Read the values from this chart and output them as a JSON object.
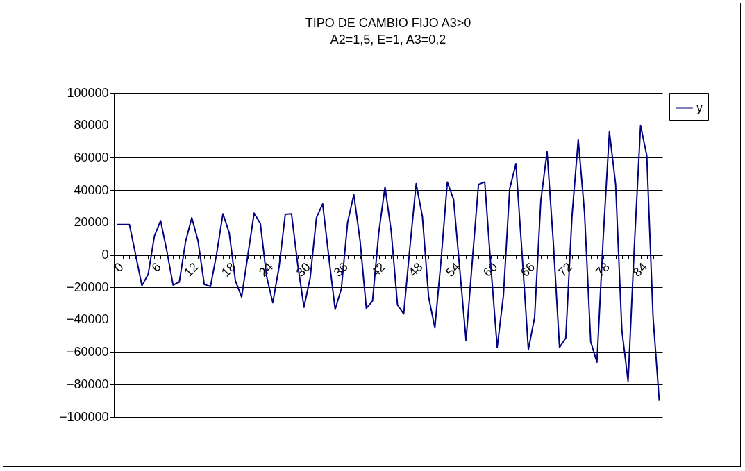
{
  "chart_data": {
    "type": "line",
    "title": "TIPO DE CAMBIO FIJO A3>0",
    "subtitle": "A2=1,5, E=1, A3=0,2",
    "categories": [
      "0",
      null,
      null,
      null,
      null,
      null,
      "6",
      null,
      null,
      null,
      null,
      null,
      "12",
      null,
      null,
      null,
      null,
      null,
      "18",
      null,
      null,
      null,
      null,
      null,
      "24",
      null,
      null,
      null,
      null,
      null,
      "30",
      null,
      null,
      null,
      null,
      null,
      "36",
      null,
      null,
      null,
      null,
      null,
      "42",
      null,
      null,
      null,
      null,
      null,
      "48",
      null,
      null,
      null,
      null,
      null,
      "54",
      null,
      null,
      null,
      null,
      null,
      "60",
      null,
      null,
      null,
      null,
      null,
      "66",
      null,
      null,
      null,
      null,
      null,
      "72",
      null,
      null,
      null,
      null,
      null,
      "78",
      null,
      null,
      null,
      null,
      null,
      "84",
      null,
      null,
      null
    ],
    "series": [
      {
        "name": "y",
        "color": "#000080",
        "values": [
          18700,
          18700,
          18700,
          0,
          -19000,
          -12000,
          11600,
          21100,
          2400,
          -18600,
          -16700,
          8100,
          23000,
          8800,
          -18200,
          -19500,
          1000,
          25400,
          13800,
          -16000,
          -26000,
          0,
          25800,
          19400,
          -13200,
          -29500,
          -7500,
          25100,
          25400,
          -6100,
          -32200,
          -14000,
          23000,
          31500,
          -1800,
          -33600,
          -20800,
          20100,
          37200,
          8800,
          -32900,
          -28400,
          13800,
          42000,
          14500,
          -30800,
          -36400,
          5000,
          44000,
          23700,
          -26000,
          -45000,
          -3000,
          45000,
          34300,
          -9000,
          -52700,
          -4000,
          43500,
          45000,
          -8000,
          -57000,
          -25000,
          40700,
          56300,
          0,
          -58400,
          -38600,
          33600,
          63700,
          8000,
          -57000,
          -51300,
          24000,
          71200,
          26500,
          -53500,
          -66200,
          10000,
          76100,
          43500,
          -46400,
          -78000,
          5000,
          80000,
          61300,
          -38000,
          -90000
        ]
      }
    ],
    "ylim": [
      -100000,
      100000
    ],
    "yticks": [
      -100000,
      -80000,
      -60000,
      -40000,
      -20000,
      0,
      20000,
      40000,
      60000,
      80000,
      100000
    ],
    "grid": "y",
    "legend": "right"
  }
}
